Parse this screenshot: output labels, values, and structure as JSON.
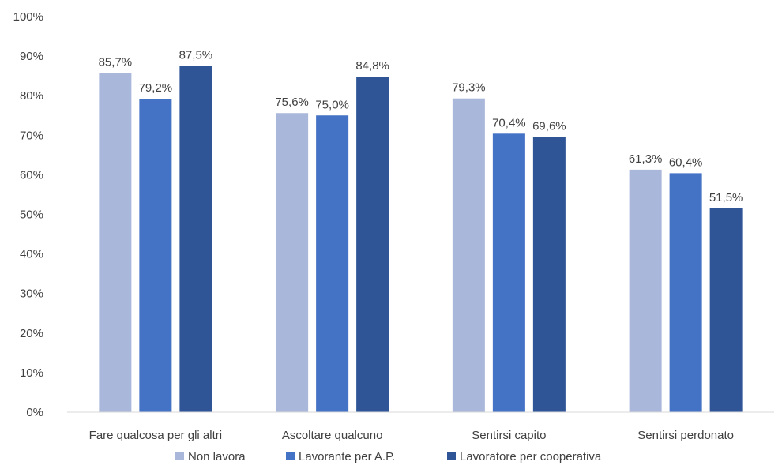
{
  "chart_data": {
    "type": "bar",
    "categories": [
      "Fare qualcosa per gli altri",
      "Ascoltare qualcuno",
      "Sentirsi capito",
      "Sentirsi perdonato"
    ],
    "series": [
      {
        "name": "Non lavora",
        "values": [
          85.7,
          75.6,
          79.3,
          61.3
        ],
        "labels": [
          "85,7%",
          "75,6%",
          "79,3%",
          "61,3%"
        ],
        "color": "#A9B7DA"
      },
      {
        "name": "Lavorante per A.P.",
        "values": [
          79.2,
          75.0,
          70.4,
          60.4
        ],
        "labels": [
          "79,2%",
          "75,0%",
          "70,4%",
          "60,4%"
        ],
        "color": "#4472C4"
      },
      {
        "name": "Lavoratore per cooperativa",
        "values": [
          87.5,
          84.8,
          69.6,
          51.5
        ],
        "labels": [
          "87,5%",
          "84,8%",
          "69,6%",
          "51,5%"
        ],
        "color": "#2F5597"
      }
    ],
    "ylim": [
      0,
      100
    ],
    "yticks": [
      "0%",
      "10%",
      "20%",
      "30%",
      "40%",
      "50%",
      "60%",
      "70%",
      "80%",
      "90%",
      "100%"
    ],
    "grid": false,
    "legend_position": "bottom"
  }
}
